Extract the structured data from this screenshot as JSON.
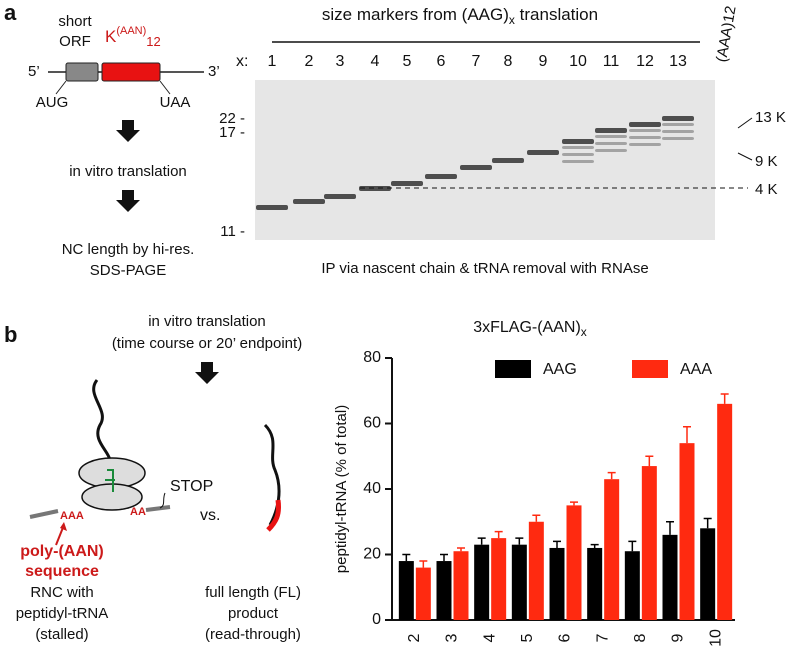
{
  "panel_a": {
    "label": "a",
    "orf_label": [
      "short",
      "ORF"
    ],
    "k_label": [
      "K",
      "(AAN)",
      "12"
    ],
    "five_prime": "5’",
    "three_prime": "3’",
    "start": "AUG",
    "stop": "UAA",
    "step1": "in vitro translation",
    "step2": [
      "NC length by hi-res.",
      "SDS-PAGE"
    ],
    "gel_title": [
      "size markers from (AAG)",
      "x",
      " translation"
    ],
    "lane_prefix": "x:",
    "lanes": [
      "1",
      "2",
      "3",
      "4",
      "5",
      "6",
      "7",
      "8",
      "9",
      "10",
      "11",
      "12",
      "13"
    ],
    "control_lane": "(AAA)12",
    "kda_markers": [
      "22 -",
      "17 -",
      "11 -"
    ],
    "k_markers": [
      "13 K",
      "9 K",
      "4 K"
    ],
    "caption": "IP via nascent chain & tRNA removal with RNAse"
  },
  "panel_b": {
    "label": "b",
    "step": [
      "in vitro translation",
      "(time course or 20’ endpoint)"
    ],
    "stop": "STOP",
    "vs": "vs.",
    "aaa": "AAA",
    "aa": "AA",
    "poly": [
      "poly-(AAN)",
      "sequence"
    ],
    "rnc": [
      "RNC with",
      "peptidyl-tRNA",
      "(stalled)"
    ],
    "fl": [
      "full length (FL)",
      "product",
      "(read-through)"
    ]
  },
  "chart_data": {
    "type": "bar",
    "title": "3xFLAG-(AAN)",
    "title_sub": "x",
    "ylabel": "peptidyl-tRNA (% of total)",
    "categories": [
      "2",
      "3",
      "4",
      "5",
      "6",
      "7",
      "8",
      "9",
      "10"
    ],
    "series": [
      {
        "name": "AAG",
        "color": "#000000",
        "values": [
          18,
          18,
          23,
          23,
          22,
          22,
          21,
          26,
          28
        ],
        "errors": [
          2,
          2,
          2,
          2,
          2,
          1,
          3,
          4,
          3
        ]
      },
      {
        "name": "AAA",
        "color": "#ff2a10",
        "values": [
          16,
          21,
          25,
          30,
          35,
          43,
          47,
          54,
          66
        ],
        "errors": [
          2,
          1,
          2,
          2,
          1,
          2,
          3,
          5,
          3
        ]
      }
    ],
    "ylim": [
      0,
      80
    ],
    "yticks": [
      0,
      20,
      40,
      60,
      80
    ]
  }
}
